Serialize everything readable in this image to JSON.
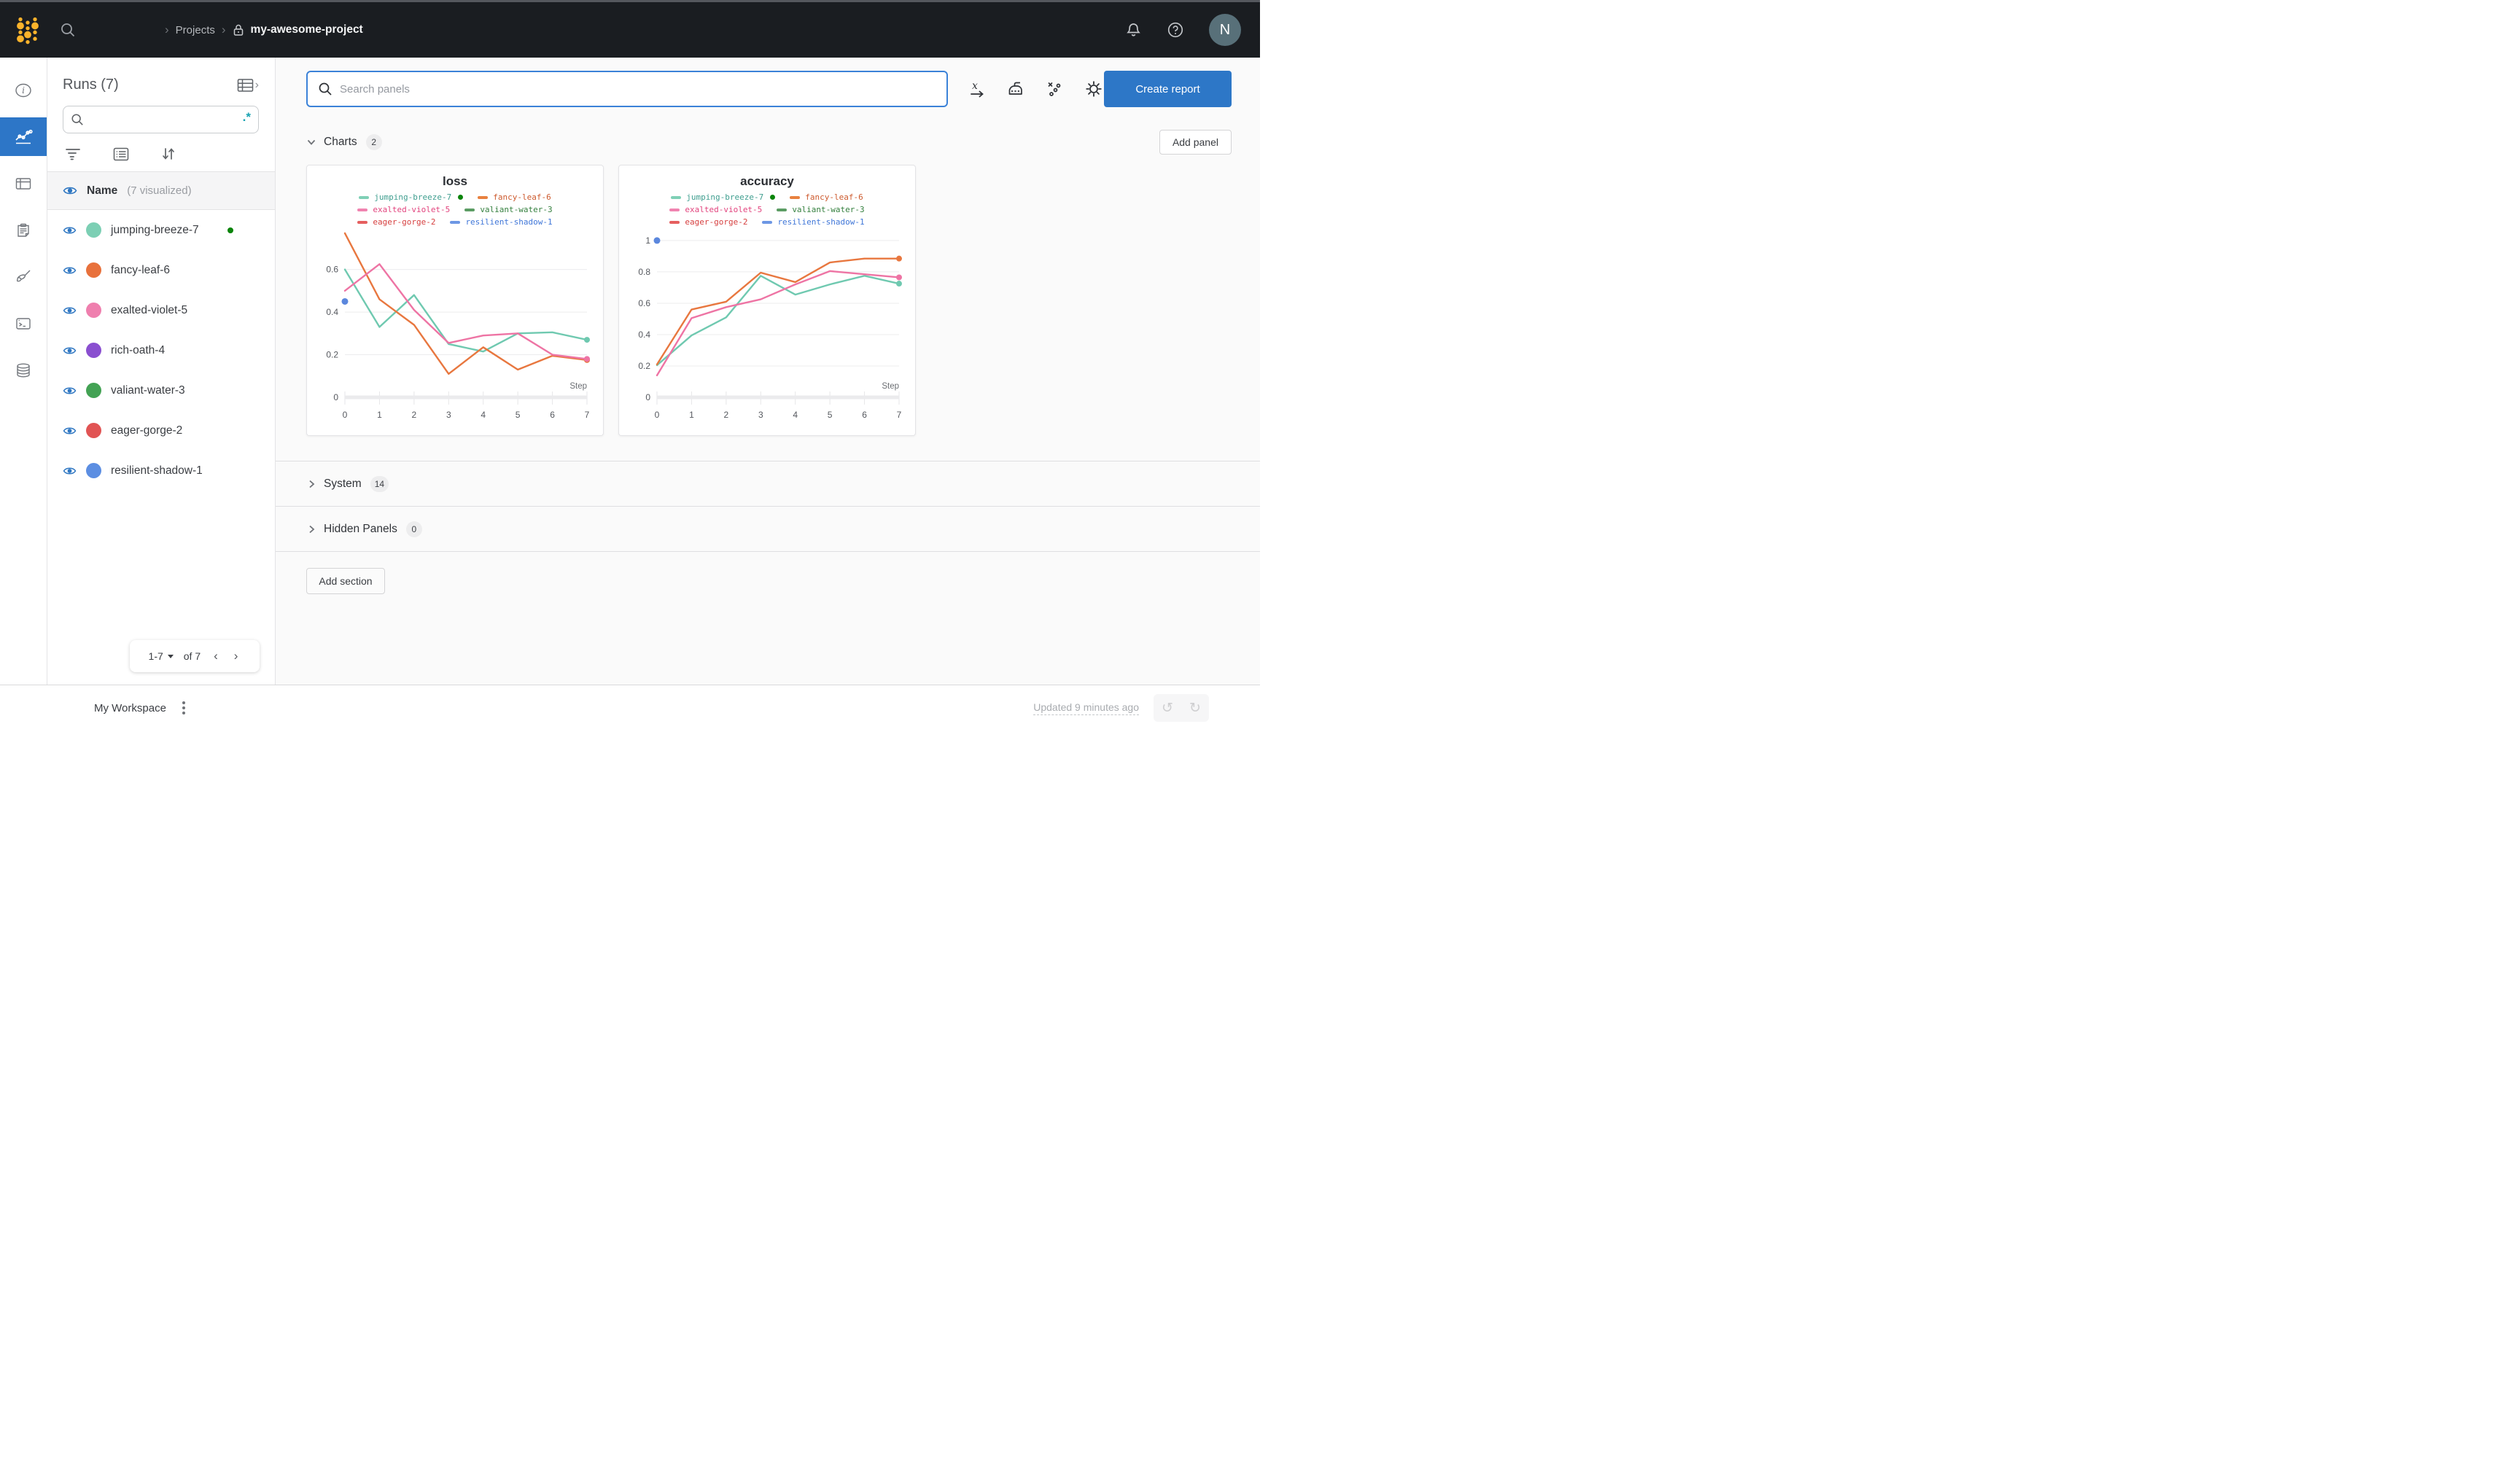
{
  "topnav": {
    "breadcrumb": {
      "projects_label": "Projects",
      "project_name": "my-awesome-project"
    },
    "avatar_initial": "N"
  },
  "icon_rail": {
    "items": [
      "info-icon",
      "line-chart-icon",
      "table-icon",
      "clipboard-icon",
      "broom-icon",
      "terminal-icon",
      "database-icon"
    ],
    "selected": "line-chart-icon",
    "selected_color": "#2d76c7"
  },
  "runs_sidebar": {
    "title": "Runs (7)",
    "search_placeholder": "",
    "regex_glyph": ".*",
    "header": {
      "name_label": "Name",
      "visualized_label": "(7 visualized)"
    },
    "runs": [
      {
        "name": "jumping-breeze-7",
        "color": "#7ccfb4",
        "running": true
      },
      {
        "name": "fancy-leaf-6",
        "color": "#e8713c",
        "running": false
      },
      {
        "name": "exalted-violet-5",
        "color": "#ef7fae",
        "running": false
      },
      {
        "name": "rich-oath-4",
        "color": "#8a4fd0",
        "running": false
      },
      {
        "name": "valiant-water-3",
        "color": "#43a254",
        "running": false
      },
      {
        "name": "eager-gorge-2",
        "color": "#e15454",
        "running": false
      },
      {
        "name": "resilient-shadow-1",
        "color": "#5c8ee2",
        "running": false
      }
    ],
    "pagination": {
      "range": "1-7",
      "of_label": "of 7",
      "prev_glyph": "‹",
      "next_glyph": "›"
    }
  },
  "main": {
    "panel_search_placeholder": "Search panels",
    "create_report_label": "Create report",
    "add_panel_label": "Add panel",
    "sections": {
      "charts": {
        "label": "Charts",
        "count": "2"
      },
      "system": {
        "label": "System",
        "count": "14"
      },
      "hidden": {
        "label": "Hidden Panels",
        "count": "0"
      }
    },
    "add_section_label": "Add section"
  },
  "footer": {
    "workspace_label": "My Workspace",
    "updated_label": "Updated 9 minutes ago",
    "undo_glyph": "↺",
    "redo_glyph": "↻"
  },
  "colors": {
    "running_dot": "#0a840a",
    "accent_blue": "#2d77c7"
  },
  "chart_data": [
    {
      "type": "line",
      "title": "loss",
      "xlabel": "Step",
      "x": [
        0,
        1,
        2,
        3,
        4,
        5,
        6,
        7
      ],
      "xlim": [
        0,
        7
      ],
      "ylim": [
        0,
        0.78
      ],
      "y_ticks": [
        0,
        0.2,
        0.4,
        0.6
      ],
      "grid": true,
      "legend_position": "top",
      "legend": [
        [
          {
            "label": "jumping-breeze-7",
            "swatch": "#7fd0b6",
            "text_color": "#3f9e8f",
            "running": true
          },
          {
            "label": "fancy-leaf-6",
            "swatch": "#e8813f",
            "text_color": "#cd5a2e",
            "running": false
          }
        ],
        [
          {
            "label": "exalted-violet-5",
            "swatch": "#f083b0",
            "text_color": "#e2447e",
            "running": false
          },
          {
            "label": "valiant-water-3",
            "swatch": "#5b9c63",
            "text_color": "#35803f",
            "running": false
          }
        ],
        [
          {
            "label": "eager-gorge-2",
            "swatch": "#e55f5f",
            "text_color": "#d63f3f",
            "running": false
          },
          {
            "label": "resilient-shadow-1",
            "swatch": "#6d97e4",
            "text_color": "#3f76d8",
            "running": false
          }
        ]
      ],
      "series": [
        {
          "name": "jumping-breeze-7",
          "color": "#6fc9b0",
          "end_dot": true,
          "values": [
            0.6,
            0.33,
            0.48,
            0.25,
            0.215,
            0.3,
            0.305,
            0.27
          ]
        },
        {
          "name": "fancy-leaf-6",
          "color": "#e8773f",
          "end_dot": true,
          "values": [
            0.77,
            0.46,
            0.34,
            0.11,
            0.235,
            0.13,
            0.195,
            0.175
          ]
        },
        {
          "name": "exalted-violet-5",
          "color": "#ee74a4",
          "end_dot": true,
          "values": [
            0.5,
            0.625,
            0.41,
            0.255,
            0.29,
            0.3,
            0.2,
            0.18
          ]
        }
      ],
      "points": [
        {
          "name": "resilient-shadow-1",
          "color": "#5b87dd",
          "x": 0,
          "y": 0.45
        }
      ]
    },
    {
      "type": "line",
      "title": "accuracy",
      "xlabel": "Step",
      "x": [
        0,
        1,
        2,
        3,
        4,
        5,
        6,
        7
      ],
      "xlim": [
        0,
        7
      ],
      "ylim": [
        0,
        1.06
      ],
      "y_ticks": [
        0,
        0.2,
        0.4,
        0.6,
        0.8,
        1
      ],
      "grid": true,
      "legend_position": "top",
      "legend": [
        [
          {
            "label": "jumping-breeze-7",
            "swatch": "#7fd0b6",
            "text_color": "#3f9e8f",
            "running": true
          },
          {
            "label": "fancy-leaf-6",
            "swatch": "#e8813f",
            "text_color": "#cd5a2e",
            "running": false
          }
        ],
        [
          {
            "label": "exalted-violet-5",
            "swatch": "#f083b0",
            "text_color": "#e2447e",
            "running": false
          },
          {
            "label": "valiant-water-3",
            "swatch": "#5b9c63",
            "text_color": "#35803f",
            "running": false
          }
        ],
        [
          {
            "label": "eager-gorge-2",
            "swatch": "#e55f5f",
            "text_color": "#d63f3f",
            "running": false
          },
          {
            "label": "resilient-shadow-1",
            "swatch": "#6d97e4",
            "text_color": "#3f76d8",
            "running": false
          }
        ]
      ],
      "series": [
        {
          "name": "jumping-breeze-7",
          "color": "#6fc9b0",
          "end_dot": true,
          "values": [
            0.205,
            0.395,
            0.51,
            0.775,
            0.655,
            0.72,
            0.775,
            0.725
          ]
        },
        {
          "name": "fancy-leaf-6",
          "color": "#e8773f",
          "end_dot": true,
          "values": [
            0.21,
            0.56,
            0.61,
            0.795,
            0.735,
            0.86,
            0.885,
            0.885
          ]
        },
        {
          "name": "exalted-violet-5",
          "color": "#ee74a4",
          "end_dot": true,
          "values": [
            0.14,
            0.505,
            0.575,
            0.625,
            0.72,
            0.805,
            0.785,
            0.765
          ]
        }
      ],
      "points": [
        {
          "name": "resilient-shadow-1",
          "color": "#5b87dd",
          "x": 0,
          "y": 1.0
        }
      ]
    }
  ]
}
